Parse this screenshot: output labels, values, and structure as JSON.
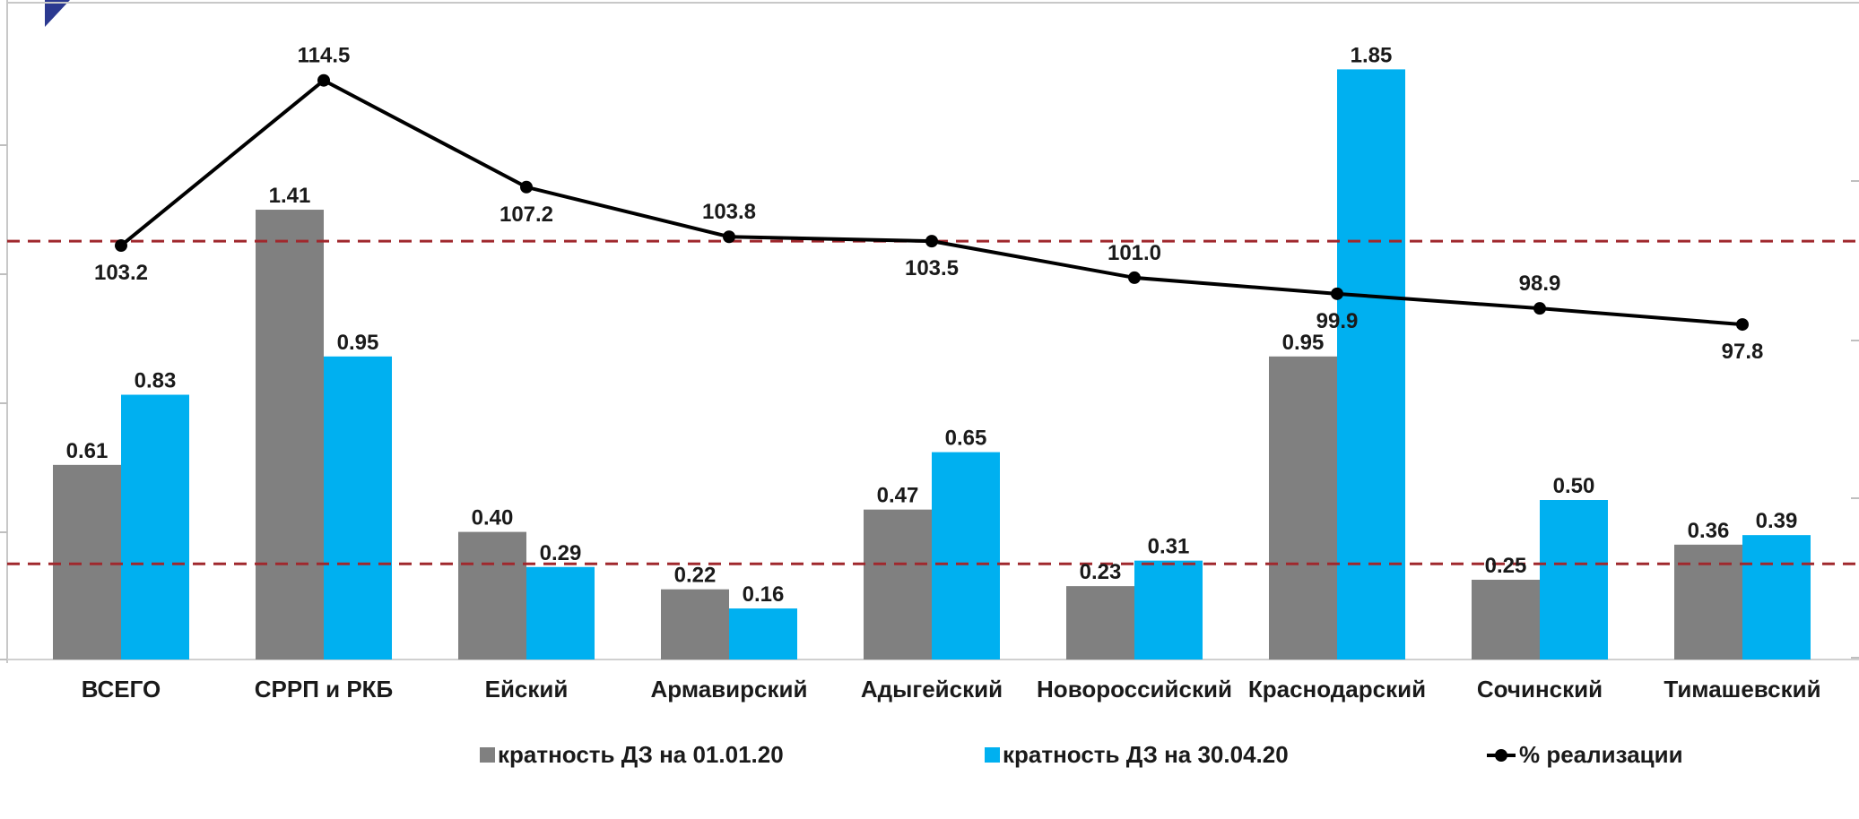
{
  "chart_data": {
    "type": "bar",
    "categories": [
      "ВСЕГО",
      "СРРП и РКБ",
      "Ейский",
      "Армавирский",
      "Адыгейский",
      "Новороссийский",
      "Краснодарский",
      "Сочинский",
      "Тимашевский"
    ],
    "series": [
      {
        "name": "кратность ДЗ на 01.01.20",
        "type": "bar",
        "color": "#808080",
        "values": [
          0.61,
          1.41,
          0.4,
          0.22,
          0.47,
          0.23,
          0.95,
          0.25,
          0.36
        ],
        "value_labels": [
          "0.61",
          "1.41",
          "0.40",
          "0.22",
          "0.47",
          "0.23",
          "0.95",
          "0.25",
          "0.36"
        ]
      },
      {
        "name": "кратность ДЗ на 30.04.20",
        "type": "bar",
        "color": "#00b0f0",
        "values": [
          0.83,
          0.95,
          0.29,
          0.16,
          0.65,
          0.31,
          1.85,
          0.5,
          0.39
        ],
        "value_labels": [
          "0.83",
          "0.95",
          "0.29",
          "0.16",
          "0.65",
          "0.31",
          "1.85",
          "0.50",
          "0.39"
        ]
      },
      {
        "name": "% реализации",
        "type": "line",
        "color": "#000000",
        "values": [
          103.2,
          114.5,
          107.2,
          103.8,
          103.5,
          101.0,
          99.9,
          98.9,
          97.8
        ],
        "value_labels": [
          "103.2",
          "114.5",
          "107.2",
          "103.8",
          "103.5",
          "101.0",
          "99.9",
          "98.9",
          "97.8"
        ]
      }
    ],
    "reference_lines": [
      {
        "axis": "primary",
        "value": 0.3,
        "color": "#a0282d",
        "style": "dashed"
      },
      {
        "axis": "secondary",
        "value": 103.5,
        "color": "#a0282d",
        "style": "dashed"
      }
    ],
    "ylim": [
      0,
      2
    ],
    "y2lim": [
      75,
      120
    ],
    "legend_position": "bottom",
    "grid": false,
    "title": "",
    "xlabel": "",
    "ylabel": ""
  }
}
